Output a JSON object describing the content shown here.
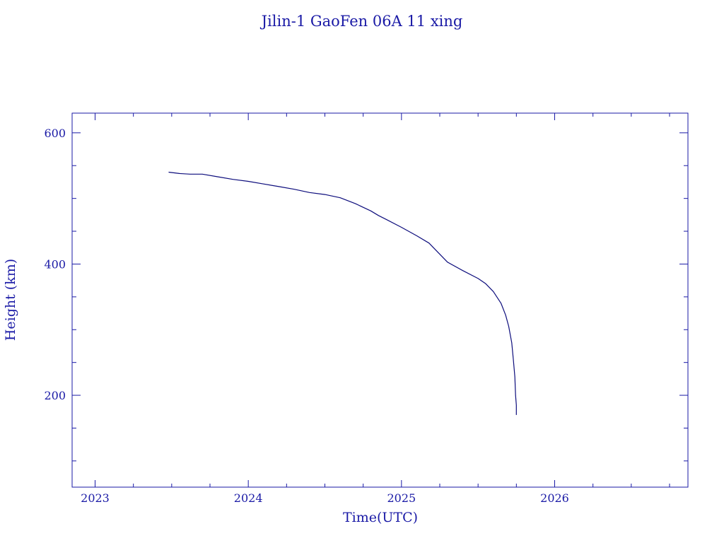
{
  "chart_data": {
    "type": "line",
    "title": "Jilin-1 GaoFen 06A 11 xing",
    "xlabel": "Time(UTC)",
    "ylabel": "Height (km)",
    "xlim": [
      2022.85,
      2026.87
    ],
    "ylim": [
      60,
      630
    ],
    "x_ticks": [
      2023,
      2024,
      2025,
      2026
    ],
    "y_ticks": [
      200,
      400,
      600
    ],
    "x_tick_labels": [
      "2023",
      "2024",
      "2025",
      "2026"
    ],
    "y_tick_labels": [
      "200",
      "400",
      "600"
    ],
    "grid": false,
    "colors": {
      "axis": "#1a1aa6",
      "line": "#0c0c7c"
    },
    "series": [
      {
        "x": [
          2023.48,
          2023.55,
          2023.62,
          2023.7,
          2023.8,
          2023.9,
          2024.0,
          2024.1,
          2024.2,
          2024.3,
          2024.4,
          2024.5,
          2024.6,
          2024.7,
          2024.8,
          2024.85,
          2024.9,
          2025.0,
          2025.1,
          2025.18,
          2025.3,
          2025.4,
          2025.5,
          2025.55,
          2025.6,
          2025.65,
          2025.68,
          2025.7,
          2025.72,
          2025.73,
          2025.74,
          2025.745,
          2025.75,
          2025.75
        ],
        "y": [
          540,
          538,
          537,
          537,
          533,
          529,
          526,
          522,
          518,
          514,
          509,
          506,
          501,
          492,
          481,
          474,
          468,
          456,
          443,
          432,
          403,
          390,
          378,
          370,
          358,
          340,
          322,
          305,
          280,
          255,
          228,
          200,
          185,
          170
        ]
      }
    ]
  }
}
